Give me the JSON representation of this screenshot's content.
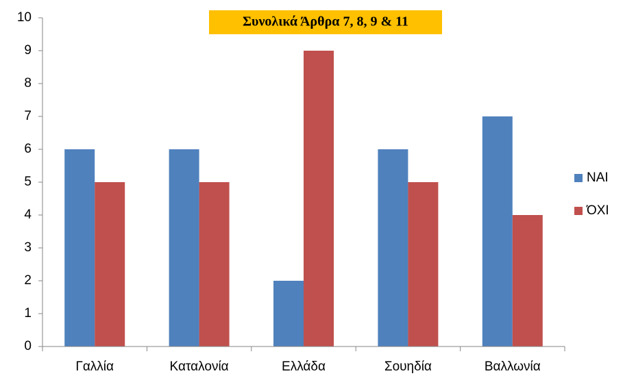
{
  "chart_data": {
    "type": "bar",
    "title": "Συνολικά Άρθρα 7, 8, 9 & 11",
    "categories": [
      "Γαλλία",
      "Καταλονία",
      "Ελλάδα",
      "Σουηδία",
      "Βαλλωνία"
    ],
    "series": [
      {
        "name": "ΝΑΙ",
        "color": "#4f81bd",
        "values": [
          6,
          6,
          2,
          6,
          7
        ]
      },
      {
        "name": "ΌΧΙ",
        "color": "#c0504d",
        "values": [
          5,
          5,
          9,
          5,
          4
        ]
      }
    ],
    "ylim": [
      0,
      10
    ],
    "yticks": [
      0,
      1,
      2,
      3,
      4,
      5,
      6,
      7,
      8,
      9,
      10
    ],
    "grid": false,
    "legend": "right"
  }
}
